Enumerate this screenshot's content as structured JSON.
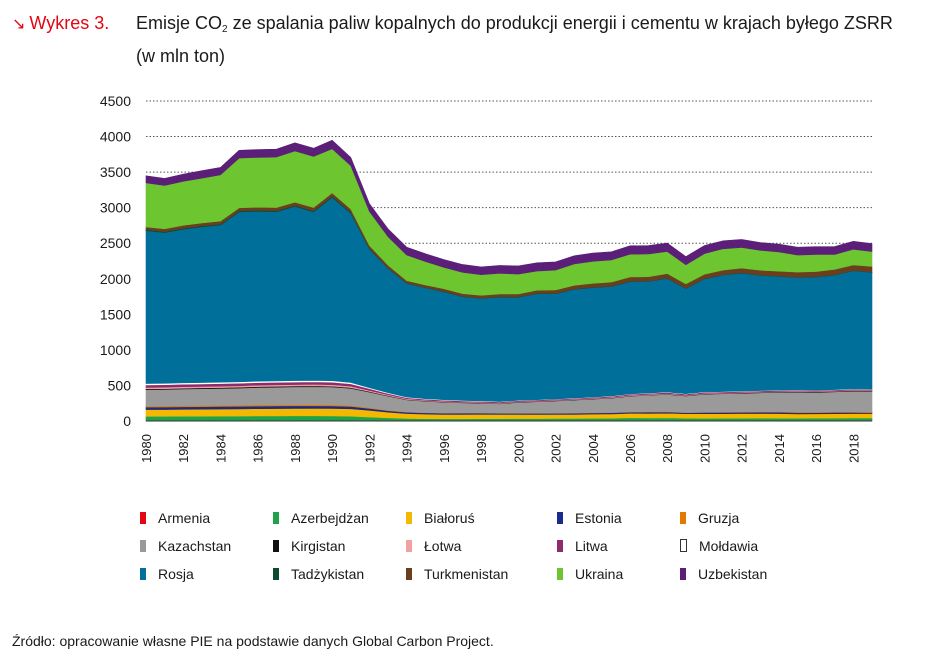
{
  "caption": {
    "arrow": "↘",
    "label": "Wykres 3.",
    "title_pre": "Emisje CO",
    "title_sub": "2",
    "title_post": " ze spalania paliw kopalnych do produkcji energii i cementu w krajach byłego ZSRR (w mln ton)"
  },
  "source": "Źródło: opracowanie własne PIE na podstawie danych Global Carbon Project.",
  "chart_data": {
    "type": "area",
    "stacked": true,
    "title": "Emisje CO2 ze spalania paliw kopalnych do produkcji energii i cementu w krajach byłego ZSRR (w mln ton)",
    "xlabel": "",
    "ylabel": "",
    "ylim": [
      0,
      4500
    ],
    "yticks": [
      "0",
      "500",
      "1000",
      "1500",
      "2000",
      "2500",
      "3000",
      "3500",
      "4000",
      "4500"
    ],
    "xticks": [
      "1980",
      "1982",
      "1984",
      "1986",
      "1988",
      "1990",
      "1992",
      "1994",
      "1996",
      "1998",
      "2000",
      "2002",
      "2004",
      "2006",
      "2008",
      "2010",
      "2012",
      "2014",
      "2016",
      "2018"
    ],
    "grid": "horizontal dotted",
    "legend_position": "bottom",
    "x": [
      1980,
      1981,
      1982,
      1983,
      1984,
      1985,
      1986,
      1987,
      1988,
      1989,
      1990,
      1991,
      1992,
      1993,
      1994,
      1995,
      1996,
      1997,
      1998,
      1999,
      2000,
      2001,
      2002,
      2003,
      2004,
      2005,
      2006,
      2007,
      2008,
      2009,
      2010,
      2011,
      2012,
      2013,
      2014,
      2015,
      2016,
      2017,
      2018,
      2019
    ],
    "series": [
      {
        "name": "Armenia",
        "color": "#e30613",
        "values": [
          10,
          10,
          11,
          11,
          11,
          11,
          11,
          11,
          11,
          11,
          11,
          10,
          5,
          4,
          3,
          3,
          3,
          3,
          3,
          3,
          4,
          4,
          4,
          4,
          4,
          4,
          5,
          5,
          5,
          5,
          5,
          5,
          5,
          5,
          5,
          5,
          5,
          5,
          6,
          6
        ]
      },
      {
        "name": "Azerbejdżan",
        "color": "#1fa34a",
        "values": [
          55,
          55,
          56,
          57,
          58,
          58,
          60,
          60,
          61,
          61,
          60,
          58,
          50,
          40,
          32,
          30,
          28,
          28,
          29,
          30,
          30,
          30,
          31,
          31,
          33,
          35,
          40,
          38,
          40,
          35,
          33,
          34,
          35,
          36,
          35,
          35,
          36,
          36,
          37,
          37
        ]
      },
      {
        "name": "Białoruś",
        "color": "#f5b800",
        "values": [
          95,
          96,
          97,
          98,
          99,
          100,
          102,
          103,
          104,
          105,
          105,
          103,
          95,
          80,
          70,
          65,
          62,
          62,
          62,
          60,
          59,
          58,
          58,
          58,
          60,
          61,
          63,
          64,
          65,
          62,
          64,
          64,
          65,
          64,
          64,
          60,
          60,
          61,
          62,
          62
        ]
      },
      {
        "name": "Estonia",
        "color": "#1b2a8c",
        "values": [
          35,
          35,
          36,
          36,
          36,
          37,
          37,
          37,
          37,
          37,
          36,
          34,
          27,
          20,
          18,
          17,
          17,
          18,
          17,
          15,
          15,
          16,
          15,
          17,
          17,
          16,
          16,
          19,
          17,
          14,
          18,
          18,
          17,
          19,
          19,
          17,
          16,
          18,
          16,
          12
        ]
      },
      {
        "name": "Gruzja",
        "color": "#e07b00",
        "values": [
          15,
          15,
          16,
          16,
          16,
          17,
          17,
          17,
          17,
          17,
          16,
          14,
          10,
          7,
          5,
          4,
          4,
          4,
          4,
          4,
          4,
          4,
          4,
          4,
          4,
          5,
          5,
          6,
          6,
          6,
          6,
          7,
          8,
          8,
          9,
          10,
          10,
          10,
          10,
          10
        ]
      },
      {
        "name": "Kazachstan",
        "color": "#9a9a9a",
        "values": [
          230,
          232,
          234,
          236,
          238,
          240,
          245,
          248,
          250,
          252,
          250,
          240,
          220,
          200,
          170,
          160,
          150,
          140,
          135,
          130,
          150,
          160,
          170,
          180,
          190,
          200,
          220,
          230,
          240,
          230,
          250,
          255,
          260,
          265,
          270,
          280,
          275,
          280,
          290,
          290
        ]
      },
      {
        "name": "Kirgistan",
        "color": "#111111",
        "values": [
          12,
          12,
          12,
          12,
          12,
          12,
          12,
          12,
          12,
          12,
          12,
          11,
          8,
          6,
          5,
          5,
          5,
          5,
          5,
          5,
          5,
          5,
          5,
          5,
          5,
          5,
          5,
          5,
          6,
          6,
          6,
          6,
          6,
          7,
          7,
          7,
          8,
          8,
          8,
          8
        ]
      },
      {
        "name": "Łotwa",
        "color": "#f2a0a0",
        "values": [
          20,
          20,
          20,
          20,
          20,
          20,
          20,
          20,
          20,
          20,
          20,
          19,
          15,
          12,
          10,
          9,
          9,
          8,
          8,
          8,
          7,
          7,
          7,
          7,
          7,
          8,
          8,
          8,
          8,
          7,
          8,
          7,
          7,
          7,
          7,
          7,
          7,
          7,
          7,
          7
        ]
      },
      {
        "name": "Litwa",
        "color": "#8c2c6e",
        "values": [
          35,
          35,
          35,
          35,
          36,
          36,
          36,
          36,
          36,
          36,
          36,
          34,
          25,
          18,
          15,
          14,
          14,
          14,
          14,
          13,
          12,
          12,
          12,
          12,
          13,
          13,
          14,
          14,
          14,
          13,
          13,
          13,
          13,
          12,
          12,
          12,
          12,
          12,
          12,
          12
        ]
      },
      {
        "name": "Mołdawia",
        "color": "#ffffff",
        "values": [
          20,
          20,
          20,
          20,
          20,
          20,
          20,
          20,
          20,
          20,
          20,
          19,
          14,
          10,
          8,
          7,
          7,
          7,
          6,
          5,
          4,
          4,
          4,
          4,
          4,
          5,
          5,
          5,
          5,
          5,
          5,
          5,
          5,
          5,
          5,
          5,
          5,
          5,
          5,
          5
        ]
      },
      {
        "name": "Rosja",
        "color": "#006f99",
        "values": [
          2150,
          2120,
          2160,
          2190,
          2210,
          2390,
          2390,
          2380,
          2450,
          2370,
          2580,
          2380,
          1950,
          1750,
          1600,
          1560,
          1520,
          1460,
          1440,
          1470,
          1450,
          1490,
          1480,
          1530,
          1540,
          1540,
          1580,
          1570,
          1600,
          1480,
          1590,
          1640,
          1660,
          1620,
          1600,
          1580,
          1590,
          1610,
          1660,
          1640
        ]
      },
      {
        "name": "Tadżykistan",
        "color": "#0a4a2f",
        "values": [
          12,
          12,
          12,
          12,
          12,
          12,
          12,
          12,
          12,
          12,
          12,
          11,
          7,
          5,
          4,
          4,
          4,
          4,
          4,
          4,
          4,
          4,
          4,
          4,
          4,
          4,
          4,
          4,
          4,
          4,
          4,
          4,
          4,
          4,
          4,
          4,
          4,
          4,
          4,
          4
        ]
      },
      {
        "name": "Turkmenistan",
        "color": "#6b3e1f",
        "values": [
          40,
          40,
          42,
          42,
          43,
          44,
          45,
          46,
          47,
          48,
          50,
          48,
          42,
          40,
          35,
          35,
          38,
          38,
          40,
          40,
          42,
          45,
          48,
          52,
          55,
          58,
          60,
          62,
          64,
          60,
          62,
          64,
          66,
          68,
          70,
          72,
          74,
          76,
          78,
          80
        ]
      },
      {
        "name": "Ukraina",
        "color": "#6dc52f",
        "values": [
          620,
          610,
          620,
          630,
          650,
          700,
          700,
          710,
          720,
          720,
          620,
          610,
          480,
          400,
          360,
          330,
          300,
          300,
          290,
          290,
          280,
          270,
          280,
          300,
          310,
          310,
          320,
          320,
          310,
          270,
          290,
          300,
          290,
          280,
          270,
          240,
          240,
          210,
          220,
          210
        ]
      },
      {
        "name": "Uzbekistan",
        "color": "#5b1f7a",
        "values": [
          100,
          100,
          100,
          105,
          105,
          110,
          110,
          110,
          115,
          115,
          120,
          115,
          110,
          110,
          110,
          110,
          110,
          110,
          110,
          110,
          115,
          115,
          115,
          115,
          115,
          115,
          118,
          118,
          118,
          115,
          113,
          112,
          112,
          110,
          110,
          110,
          110,
          111,
          112,
          112
        ]
      }
    ]
  }
}
